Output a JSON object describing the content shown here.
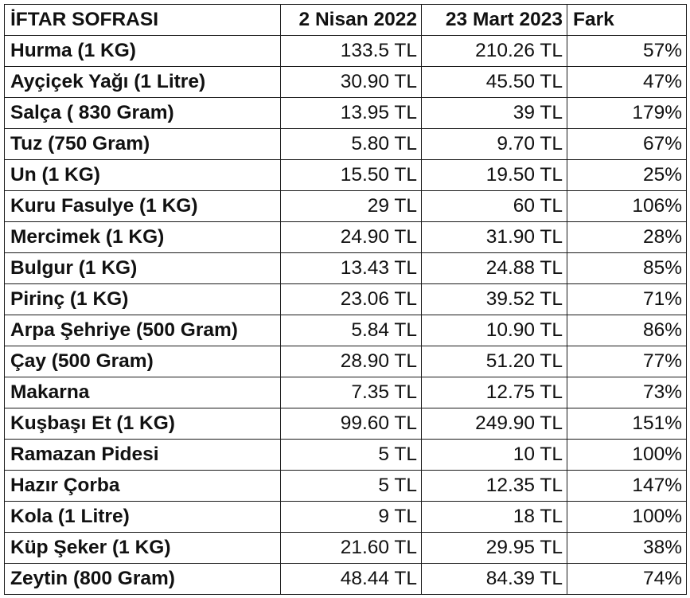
{
  "header": {
    "item": "İFTAR SOFRASI",
    "date_a": "2 Nisan 2022",
    "date_b": "23 Mart 2023",
    "diff": "Fark"
  },
  "rows": [
    {
      "item": "Hurma (1 KG)",
      "price_2022": "133.5 TL",
      "price_2023": "210.26 TL",
      "diff": "57%"
    },
    {
      "item": "Ayçiçek Yağı  (1 Litre)",
      "price_2022": "30.90 TL",
      "price_2023": "45.50 TL",
      "diff": "47%"
    },
    {
      "item": "Salça ( 830 Gram)",
      "price_2022": "13.95 TL",
      "price_2023": "39 TL",
      "diff": "179%"
    },
    {
      "item": "Tuz (750 Gram)",
      "price_2022": "5.80 TL",
      "price_2023": "9.70 TL",
      "diff": "67%"
    },
    {
      "item": "Un (1 KG)",
      "price_2022": "15.50 TL",
      "price_2023": "19.50 TL",
      "diff": "25%"
    },
    {
      "item": "Kuru Fasulye (1 KG)",
      "price_2022": "29 TL",
      "price_2023": "60 TL",
      "diff": "106%"
    },
    {
      "item": "Mercimek (1 KG)",
      "price_2022": "24.90 TL",
      "price_2023": "31.90 TL",
      "diff": "28%"
    },
    {
      "item": "Bulgur (1 KG)",
      "price_2022": "13.43 TL",
      "price_2023": "24.88 TL",
      "diff": "85%"
    },
    {
      "item": "Pirinç (1 KG)",
      "price_2022": "23.06 TL",
      "price_2023": "39.52 TL",
      "diff": "71%"
    },
    {
      "item": "Arpa Şehriye (500 Gram)",
      "price_2022": "5.84 TL",
      "price_2023": "10.90 TL",
      "diff": "86%"
    },
    {
      "item": "Çay (500 Gram)",
      "price_2022": "28.90 TL",
      "price_2023": "51.20 TL",
      "diff": "77%"
    },
    {
      "item": "Makarna",
      "price_2022": "7.35 TL",
      "price_2023": "12.75 TL",
      "diff": "73%"
    },
    {
      "item": "Kuşbaşı Et (1 KG)",
      "price_2022": "99.60 TL",
      "price_2023": "249.90 TL",
      "diff": "151%"
    },
    {
      "item": "Ramazan Pidesi",
      "price_2022": "5 TL",
      "price_2023": "10 TL",
      "diff": "100%"
    },
    {
      "item": "Hazır Çorba",
      "price_2022": "5 TL",
      "price_2023": "12.35 TL",
      "diff": "147%"
    },
    {
      "item": "Kola (1 Litre)",
      "price_2022": "9 TL",
      "price_2023": "18 TL",
      "diff": "100%"
    },
    {
      "item": "Küp Şeker (1 KG)",
      "price_2022": "21.60 TL",
      "price_2023": "29.95 TL",
      "diff": "38%"
    },
    {
      "item": "Zeytin (800 Gram)",
      "price_2022": "48.44 TL",
      "price_2023": "84.39 TL",
      "diff": "74%"
    }
  ]
}
